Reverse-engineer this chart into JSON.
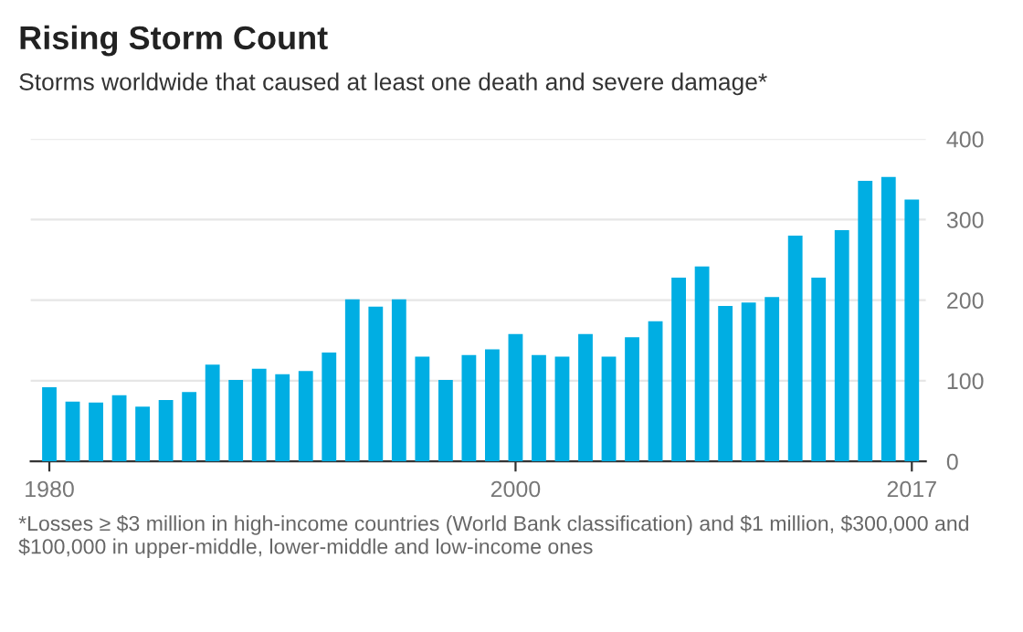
{
  "chart_data": {
    "type": "bar",
    "title": "Rising Storm Count",
    "subtitle": "Storms worldwide that caused at least one death and severe damage*",
    "x": [
      1980,
      1981,
      1982,
      1983,
      1984,
      1985,
      1986,
      1987,
      1988,
      1989,
      1990,
      1991,
      1992,
      1993,
      1994,
      1995,
      1996,
      1997,
      1998,
      1999,
      2000,
      2001,
      2002,
      2003,
      2004,
      2005,
      2006,
      2007,
      2008,
      2009,
      2010,
      2011,
      2012,
      2013,
      2014,
      2015,
      2016,
      2017
    ],
    "values": [
      92,
      74,
      73,
      82,
      68,
      76,
      86,
      120,
      101,
      115,
      108,
      112,
      135,
      201,
      192,
      201,
      130,
      101,
      132,
      139,
      158,
      132,
      130,
      158,
      130,
      154,
      174,
      228,
      242,
      193,
      197,
      204,
      280,
      228,
      287,
      348,
      353,
      325
    ],
    "color": "#00aee3",
    "xlim": [
      1979.2,
      2017.6
    ],
    "xticks": [
      1980,
      2000,
      2017
    ],
    "ylim": [
      0,
      400
    ],
    "yticks": [
      0,
      100,
      200,
      300,
      400
    ],
    "grid": "y",
    "annotations": [
      "*Losses ≥ $3 million in high-income countries (World Bank classification) and $1 million, $300,000 and $100,000 in upper-middle, lower-middle and low-income ones"
    ]
  }
}
